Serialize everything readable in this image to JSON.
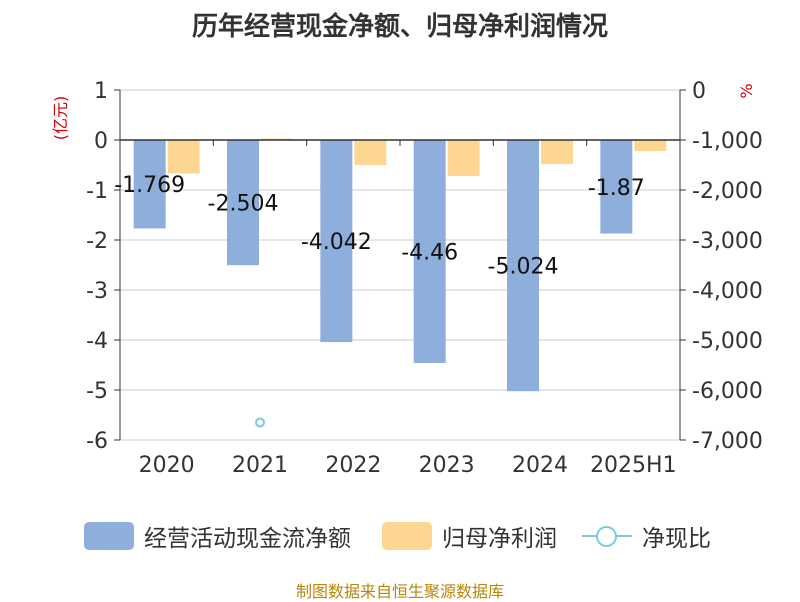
{
  "title": "历年经营现金净额、归母净利润情况",
  "source": "制图数据来自恒生聚源数据库",
  "colors": {
    "cash_flow": "#8eaedb",
    "net_profit": "#fdd791",
    "net_ratio": "#7ec9d8",
    "axis_unit": "#cc0000",
    "text": "#333333",
    "grid": "#cccccc"
  },
  "chart_data": {
    "type": "bar",
    "title": "历年经营现金净额、归母净利润情况",
    "categories": [
      "2020",
      "2021",
      "2022",
      "2023",
      "2024",
      "2025H1"
    ],
    "y_left": {
      "label": "(亿元)",
      "range": [
        -6,
        1
      ],
      "ticks": [
        1,
        0,
        -1,
        -2,
        -3,
        -4,
        -5,
        -6
      ],
      "tick_labels": [
        "1",
        "0",
        "-1",
        "-2",
        "-3",
        "-4",
        "-5",
        "-6"
      ]
    },
    "y_right": {
      "label": "%",
      "range": [
        -7000,
        0
      ],
      "ticks": [
        0,
        -1000,
        -2000,
        -3000,
        -4000,
        -5000,
        -6000,
        -7000
      ],
      "tick_labels": [
        "0",
        "-1,000",
        "-2,000",
        "-3,000",
        "-4,000",
        "-5,000",
        "-6,000",
        "-7,000"
      ]
    },
    "series": [
      {
        "name": "经营活动现金流净额",
        "type": "bar",
        "axis": "left",
        "values": [
          -1.769,
          -2.504,
          -4.042,
          -4.46,
          -5.024,
          -1.87
        ],
        "labels": [
          "-1.769",
          "-2.504",
          "-4.042",
          "-4.46",
          "-5.024",
          "-1.87"
        ]
      },
      {
        "name": "归母净利润",
        "type": "bar",
        "axis": "left",
        "values": [
          -0.67,
          0.03,
          -0.5,
          -0.72,
          -0.48,
          -0.22
        ]
      },
      {
        "name": "净现比",
        "type": "scatter",
        "axis": "right",
        "values": [
          null,
          -6650,
          null,
          null,
          null,
          null
        ]
      }
    ],
    "grid": true,
    "legend_position": "bottom"
  }
}
